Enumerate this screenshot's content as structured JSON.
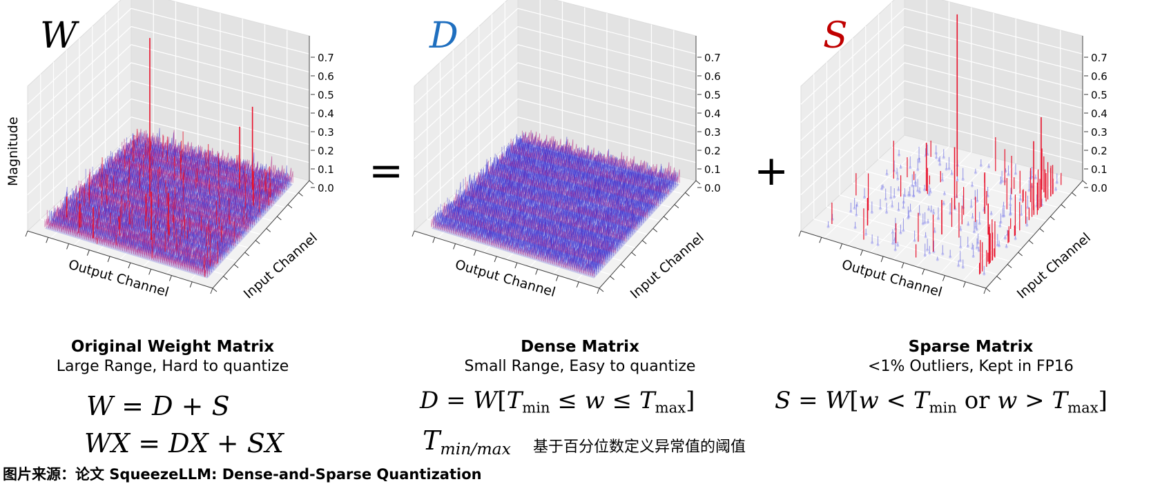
{
  "panels": [
    {
      "letter": "W",
      "color": "#000000",
      "ylabel": "Magnitude",
      "xlabel": "Output Channel",
      "depthlabel": "Input Channel",
      "ticks": [
        "0.0",
        "0.1",
        "0.2",
        "0.3",
        "0.4",
        "0.5",
        "0.6",
        "0.7"
      ],
      "title": "Original Weight Matrix",
      "subtitle": "Large Range, Hard to quantize"
    },
    {
      "letter": "D",
      "color": "#1f6fbf",
      "xlabel": "Output Channel",
      "depthlabel": "Input Channel",
      "ticks": [
        "0.0",
        "0.1",
        "0.2",
        "0.3",
        "0.4",
        "0.5",
        "0.6",
        "0.7"
      ],
      "title": "Dense Matrix",
      "subtitle": "Small Range, Easy to quantize"
    },
    {
      "letter": "S",
      "color": "#c00000",
      "xlabel": "Output Channel",
      "depthlabel": "Input Channel",
      "ticks": [
        "0.0",
        "0.1",
        "0.2",
        "0.3",
        "0.4",
        "0.5",
        "0.6",
        "0.7"
      ],
      "title": "Sparse Matrix",
      "subtitle": "<1% Outliers, Kept in FP16"
    }
  ],
  "operators": {
    "equals": "=",
    "plus": "+"
  },
  "formulas": {
    "eq1": {
      "W": "W",
      "eq": "=",
      "D": "D",
      "plus": "+",
      "S": "S"
    },
    "eq2": {
      "WX": "WX",
      "eq": "=",
      "DX": "DX",
      "plus": "+",
      "SX": "SX"
    },
    "dense": {
      "lhs": "D",
      "eq": "=",
      "W": "W",
      "T1": "T",
      "sub1": "min",
      "le1": "≤",
      "w": "w",
      "le2": "≤",
      "T2": "T",
      "sub2": "max"
    },
    "sparse": {
      "lhs": "S",
      "eq": "=",
      "W": "W",
      "w1": "w",
      "lt": "<",
      "T1": "T",
      "sub1": "min",
      "or": "or",
      "w2": "w",
      "gt": ">",
      "T2": "T",
      "sub2": "max"
    },
    "threshold": {
      "T": "T",
      "sub": "min/max",
      "note": "基于百分位数定义异常值的阈值"
    }
  },
  "source": "图片来源：论文 SqueezeLLM: Dense-and-Sparse Quantization"
}
